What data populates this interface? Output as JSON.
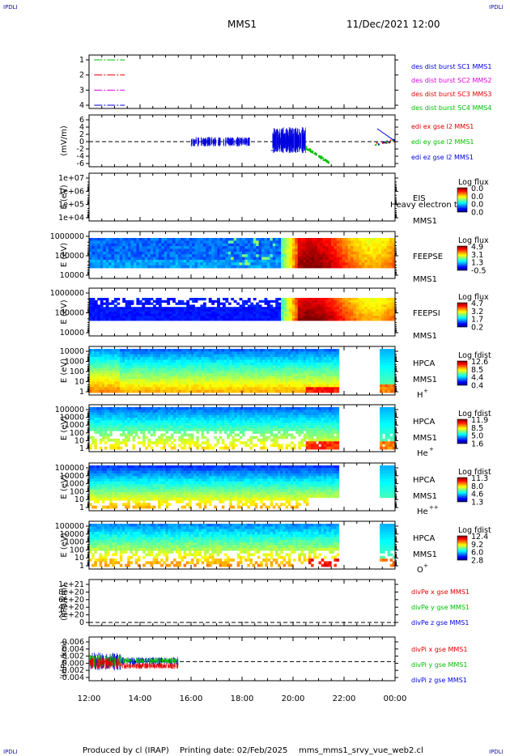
{
  "page": {
    "corner_label": "IPDLI",
    "title": "MMS1",
    "date": "11/Dec/2021 12:00",
    "footer_producer": "Produced by cl (IRAP)",
    "footer_printing": "Printing date: 02/Feb/2025",
    "footer_file": "mms_mms1_srvy_vue_web2.cl"
  },
  "colors": {
    "red": "#e00000",
    "green": "#00c000",
    "blue": "#0000e0",
    "magenta": "#e000e0"
  },
  "chart_data": [
    {
      "type": "line",
      "id": "des_burst",
      "ylabel": "",
      "yticks": [
        "1",
        "2",
        "3",
        "4"
      ],
      "ylim": [
        0.6,
        4.4
      ],
      "series": [
        {
          "name": "des dist burst SC1 MMS1",
          "color": "blue",
          "y": 1,
          "x": [
            0.2,
            1.4
          ]
        },
        {
          "name": "des dist burst SC2 MMS2",
          "color": "magenta",
          "y": 2,
          "x": [
            0.2,
            1.4
          ]
        },
        {
          "name": "des dist burst SC3 MMS3",
          "color": "red",
          "y": 3,
          "x": [
            0.2,
            1.4
          ]
        },
        {
          "name": "des dist burst SC4 MMS4",
          "color": "green",
          "y": 4,
          "x": [
            0.2,
            1.4
          ]
        }
      ]
    },
    {
      "type": "line",
      "id": "edi",
      "ylabel": "(mV/m)",
      "yticks": [
        "6",
        "4",
        "2",
        "0",
        "-2",
        "-4",
        "-6"
      ],
      "ylim": [
        -7,
        7
      ],
      "series": [
        {
          "name": "edi ex gse l2 MMS1",
          "color": "red"
        },
        {
          "name": "edi ey gse l2 MMS1",
          "color": "green"
        },
        {
          "name": "edi ez gse l2 MMS1",
          "color": "blue"
        }
      ]
    },
    {
      "type": "heatmap",
      "id": "eis",
      "ylabel": "E (eV)",
      "yticks": [
        "1e+07",
        "1e+06",
        "1e+05",
        "1e+04"
      ],
      "ylog": true,
      "instrument": "EIS",
      "spacecraft": "MMS1",
      "overlay": "Heavy electron tof",
      "cbar_title": "Log flux",
      "cbar_ticks": [
        "0.0",
        "0.0",
        "0.0",
        "0.0"
      ]
    },
    {
      "type": "heatmap",
      "id": "feepse",
      "ylabel": "E (eV)",
      "yticks": [
        "1000000",
        "100000",
        "10000"
      ],
      "ylog": true,
      "instrument": "FEEPSE",
      "spacecraft": "MMS1",
      "cbar_title": "Log flux",
      "cbar_ticks": [
        "4.9",
        "3.1",
        "1.3",
        "-0.5"
      ]
    },
    {
      "type": "heatmap",
      "id": "feepsi",
      "ylabel": "E (eV)",
      "yticks": [
        "1000000",
        "100000",
        "10000"
      ],
      "ylog": true,
      "instrument": "FEEPSI",
      "spacecraft": "MMS1",
      "cbar_title": "Log flux",
      "cbar_ticks": [
        "4.7",
        "3.2",
        "1.7",
        "0.2"
      ]
    },
    {
      "type": "heatmap",
      "id": "hpca_h",
      "ylabel": "E (eV)",
      "yticks": [
        "10000",
        "1000",
        "100",
        "10",
        "1"
      ],
      "ylog": true,
      "instrument": "HPCA",
      "spacecraft": "MMS1",
      "species": "H",
      "species_sup": "+",
      "cbar_title": "Log fdist",
      "cbar_ticks": [
        "12.6",
        "8.5",
        "4.4",
        "0.4"
      ]
    },
    {
      "type": "heatmap",
      "id": "hpca_he1",
      "ylabel": "E (eV)",
      "yticks": [
        "100000",
        "10000",
        "1000",
        "100",
        "10",
        "1"
      ],
      "ylog": true,
      "instrument": "HPCA",
      "spacecraft": "MMS1",
      "species": "He",
      "species_sup": "+",
      "cbar_title": "Log fdist",
      "cbar_ticks": [
        "11.9",
        "8.5",
        "5.0",
        "1.6"
      ]
    },
    {
      "type": "heatmap",
      "id": "hpca_he2",
      "ylabel": "E (eV)",
      "yticks": [
        "100000",
        "10000",
        "1000",
        "100",
        "10",
        "1"
      ],
      "ylog": true,
      "instrument": "HPCA",
      "spacecraft": "MMS1",
      "species": "He",
      "species_sup": "++",
      "cbar_title": "Log fdist",
      "cbar_ticks": [
        "11.3",
        "8.0",
        "4.6",
        "1.3"
      ]
    },
    {
      "type": "heatmap",
      "id": "hpca_o",
      "ylabel": "E (eV)",
      "yticks": [
        "100000",
        "10000",
        "1000",
        "100",
        "10",
        "1"
      ],
      "ylog": true,
      "instrument": "HPCA",
      "spacecraft": "MMS1",
      "species": "O",
      "species_sup": "+",
      "cbar_title": "Log fdist",
      "cbar_ticks": [
        "12.4",
        "9.2",
        "6.0",
        "2.8"
      ]
    },
    {
      "type": "line",
      "id": "divpe",
      "ylabel": "(nPa/km)",
      "yticks": [
        "1e+21",
        "8e+20",
        "6e+20",
        "4e+20",
        "2e+20",
        "0"
      ],
      "ylim": [
        -0.5,
        10.5
      ],
      "series": [
        {
          "name": "divPe x gse MMS1",
          "color": "red"
        },
        {
          "name": "divPe y gse MMS1",
          "color": "green"
        },
        {
          "name": "divPe z gse MMS1",
          "color": "blue"
        }
      ]
    },
    {
      "type": "line",
      "id": "divpi",
      "ylabel": "(nPa/km)",
      "yticks": [
        "0.006",
        "0.004",
        "0.002",
        "0.000",
        "-0.002",
        "-0.004"
      ],
      "ylim": [
        -0.0055,
        0.0068
      ],
      "series": [
        {
          "name": "divPi x gse MMS1",
          "color": "red",
          "mean": -0.0015
        },
        {
          "name": "divPi y gse MMS1",
          "color": "green",
          "mean": 0.0003
        },
        {
          "name": "divPi z gse MMS1",
          "color": "blue",
          "mean": 0.0001
        }
      ]
    }
  ],
  "time_axis": {
    "ticks": [
      "12:00",
      "14:00",
      "16:00",
      "18:00",
      "20:00",
      "22:00",
      "00:00"
    ],
    "range_hours": [
      0,
      12
    ]
  }
}
